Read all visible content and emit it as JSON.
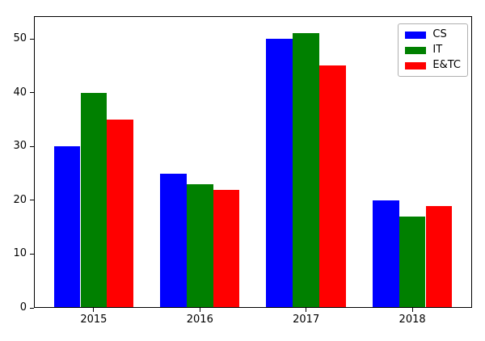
{
  "figure": {
    "background_color": "#ffffff",
    "spine_color": "#000000",
    "tick_label_color": "#000000"
  },
  "legend": {
    "position": "upper right",
    "border_color": "#b0b0b0",
    "background_color": "#ffffff"
  },
  "chart_data": {
    "type": "bar",
    "title": "",
    "xlabel": "",
    "ylabel": "",
    "categories": [
      "2015",
      "2016",
      "2017",
      "2018"
    ],
    "series": [
      {
        "name": "CS",
        "color": "#0000ff",
        "values": [
          30,
          25,
          50,
          20
        ]
      },
      {
        "name": "IT",
        "color": "#008000",
        "values": [
          40,
          23,
          51,
          17
        ]
      },
      {
        "name": "E&TC",
        "color": "#ff0000",
        "values": [
          35,
          22,
          45,
          19
        ]
      }
    ],
    "yticks": [
      0,
      10,
      20,
      30,
      40,
      50
    ],
    "ylim": [
      0,
      54.2
    ],
    "bar_width_fraction": 0.25,
    "grid": false,
    "legend_position": "upper right"
  }
}
